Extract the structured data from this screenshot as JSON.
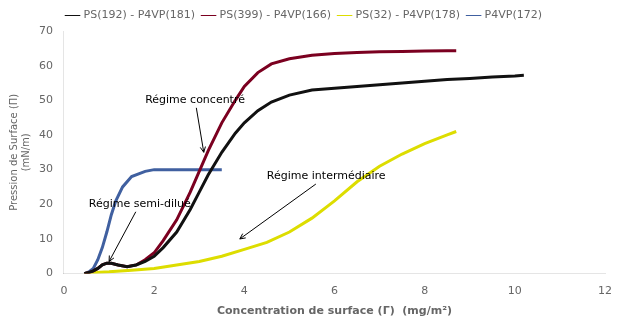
{
  "chart_data": {
    "type": "line",
    "xlabel": "Concentration de surface (Γ)  (mg/m²)",
    "ylabel": "Pression de Surface (Π)\n(mN/m)",
    "xlim": [
      0,
      12
    ],
    "ylim": [
      0,
      70
    ],
    "xticks": [
      0,
      2,
      4,
      6,
      8,
      10,
      12
    ],
    "yticks": [
      0,
      10,
      20,
      30,
      40,
      50,
      60,
      70
    ],
    "grid": false,
    "legend": "top",
    "series": [
      {
        "name": "PS(192) - P4VP(181)",
        "color": "#111111",
        "x": [
          0.45,
          0.55,
          0.65,
          0.75,
          0.85,
          0.95,
          1.05,
          1.2,
          1.4,
          1.6,
          1.8,
          2.0,
          2.2,
          2.5,
          2.8,
          3.0,
          3.2,
          3.5,
          3.8,
          4.0,
          4.3,
          4.6,
          5.0,
          5.5,
          6.0,
          6.5,
          7.0,
          7.5,
          8.0,
          8.5,
          9.0,
          9.5,
          10.0,
          10.2
        ],
        "values": [
          0.0,
          0.3,
          0.8,
          1.5,
          2.5,
          3.0,
          3.0,
          2.5,
          2.0,
          2.5,
          3.5,
          5.0,
          7.5,
          12.0,
          18.5,
          23.5,
          28.5,
          35.0,
          40.5,
          43.5,
          47.0,
          49.5,
          51.5,
          53.0,
          53.5,
          54.0,
          54.5,
          55.0,
          55.5,
          56.0,
          56.3,
          56.7,
          57.0,
          57.2
        ]
      },
      {
        "name": "PS(399) - P4VP(166)",
        "color": "#7B0020",
        "x": [
          0.45,
          0.55,
          0.65,
          0.75,
          0.85,
          0.95,
          1.05,
          1.2,
          1.4,
          1.6,
          1.8,
          2.0,
          2.2,
          2.5,
          2.8,
          3.0,
          3.2,
          3.5,
          3.8,
          4.0,
          4.3,
          4.6,
          5.0,
          5.5,
          6.0,
          6.5,
          7.0,
          7.5,
          8.0,
          8.5,
          8.7
        ],
        "values": [
          0.0,
          0.3,
          0.8,
          1.5,
          2.5,
          3.0,
          3.0,
          2.5,
          2.0,
          2.5,
          4.0,
          6.0,
          9.5,
          15.5,
          23.5,
          29.5,
          35.5,
          43.5,
          50.0,
          54.0,
          58.0,
          60.5,
          62.0,
          63.0,
          63.5,
          63.8,
          64.0,
          64.1,
          64.2,
          64.3,
          64.3
        ]
      },
      {
        "name": "PS(32) - P4VP(178)",
        "color": "#DDDD00",
        "x": [
          0.45,
          0.7,
          1.0,
          1.5,
          2.0,
          2.5,
          3.0,
          3.5,
          4.0,
          4.5,
          5.0,
          5.5,
          6.0,
          6.5,
          7.0,
          7.5,
          8.0,
          8.5,
          8.7
        ],
        "values": [
          0.0,
          0.3,
          0.5,
          1.0,
          1.5,
          2.5,
          3.5,
          5.0,
          7.0,
          9.0,
          12.0,
          16.0,
          21.0,
          26.5,
          31.0,
          34.5,
          37.5,
          40.0,
          41.0
        ]
      },
      {
        "name": "P4VP(172)",
        "color": "#4060A0",
        "x": [
          0.45,
          0.55,
          0.65,
          0.75,
          0.85,
          0.95,
          1.05,
          1.15,
          1.3,
          1.5,
          1.8,
          2.0,
          2.3,
          2.6,
          2.9,
          3.1,
          3.3,
          3.5
        ],
        "values": [
          0.0,
          0.5,
          1.5,
          4.0,
          7.5,
          12.0,
          17.0,
          21.0,
          25.0,
          28.0,
          29.5,
          30.0,
          30.0,
          30.0,
          30.0,
          30.0,
          30.0,
          30.0
        ]
      }
    ],
    "annotations": [
      {
        "text": "Régime concentré",
        "xy": [
          3.1,
          35.0
        ],
        "xytext": [
          1.8,
          50.0
        ]
      },
      {
        "text": "Régime semi-dilué",
        "xy": [
          1.0,
          3.5
        ],
        "xytext": [
          0.55,
          20.0
        ]
      },
      {
        "text": "Régime intermédiaire",
        "xy": [
          3.9,
          10.0
        ],
        "xytext": [
          4.5,
          28.0
        ]
      }
    ]
  }
}
